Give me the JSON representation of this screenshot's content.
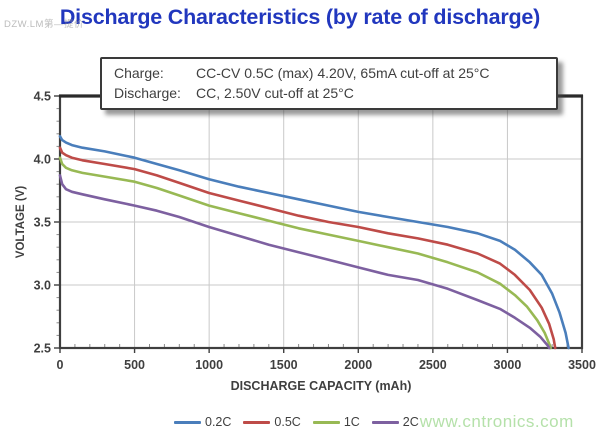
{
  "watermark_top": "DZW.LM第—提价",
  "title": "Discharge Characteristics (by rate of discharge)",
  "title_color": "#2137be",
  "note_box": {
    "rows": [
      {
        "label": "Charge:",
        "value": "CC-CV 0.5C (max) 4.20V, 65mA cut-off at 25°C"
      },
      {
        "label": "Discharge:",
        "value": "CC, 2.50V cut-off at 25°C"
      }
    ]
  },
  "watermark_site": "www.cntronics.com",
  "colors": {
    "frame": "#3f3f3f",
    "grid": "#c9c9c9",
    "tick": "#5a5a5a",
    "axis_text": "#3f3f3f"
  },
  "chart_data": {
    "type": "line",
    "title": "",
    "xlabel": "DISCHARGE CAPACITY (mAh)",
    "ylabel": "VOLTAGE (V)",
    "xlim": [
      0,
      3500
    ],
    "ylim": [
      2.5,
      4.5
    ],
    "x_ticks": [
      0,
      500,
      1000,
      1500,
      2000,
      2500,
      3000,
      3500
    ],
    "y_ticks": [
      2.5,
      3.0,
      3.5,
      4.0,
      4.5
    ],
    "y_tick_labels": [
      "2.5",
      "3.0",
      "3.5",
      "4.0",
      "4.5"
    ],
    "x_minor_step": 100,
    "y_minor_step": 0.1,
    "grid": true,
    "legend_position": "bottom",
    "series": [
      {
        "name": "0.2C",
        "color": "#4a7ebb",
        "points": [
          [
            0,
            4.18
          ],
          [
            15,
            4.15
          ],
          [
            40,
            4.13
          ],
          [
            80,
            4.11
          ],
          [
            150,
            4.09
          ],
          [
            300,
            4.06
          ],
          [
            500,
            4.01
          ],
          [
            650,
            3.96
          ],
          [
            800,
            3.91
          ],
          [
            1000,
            3.84
          ],
          [
            1200,
            3.78
          ],
          [
            1400,
            3.73
          ],
          [
            1600,
            3.68
          ],
          [
            1800,
            3.63
          ],
          [
            2000,
            3.58
          ],
          [
            2200,
            3.54
          ],
          [
            2400,
            3.5
          ],
          [
            2600,
            3.46
          ],
          [
            2800,
            3.41
          ],
          [
            2950,
            3.35
          ],
          [
            3050,
            3.28
          ],
          [
            3150,
            3.18
          ],
          [
            3230,
            3.08
          ],
          [
            3300,
            2.93
          ],
          [
            3350,
            2.78
          ],
          [
            3390,
            2.62
          ],
          [
            3410,
            2.5
          ]
        ]
      },
      {
        "name": "0.5C",
        "color": "#be4b48",
        "points": [
          [
            0,
            4.09
          ],
          [
            15,
            4.05
          ],
          [
            40,
            4.03
          ],
          [
            80,
            4.01
          ],
          [
            150,
            3.99
          ],
          [
            300,
            3.96
          ],
          [
            500,
            3.92
          ],
          [
            650,
            3.87
          ],
          [
            800,
            3.81
          ],
          [
            1000,
            3.73
          ],
          [
            1200,
            3.67
          ],
          [
            1400,
            3.61
          ],
          [
            1600,
            3.55
          ],
          [
            1800,
            3.5
          ],
          [
            2000,
            3.46
          ],
          [
            2200,
            3.41
          ],
          [
            2400,
            3.37
          ],
          [
            2600,
            3.32
          ],
          [
            2800,
            3.25
          ],
          [
            2950,
            3.17
          ],
          [
            3050,
            3.08
          ],
          [
            3150,
            2.96
          ],
          [
            3230,
            2.82
          ],
          [
            3280,
            2.69
          ],
          [
            3310,
            2.57
          ],
          [
            3320,
            2.5
          ]
        ]
      },
      {
        "name": "1C",
        "color": "#98b954",
        "points": [
          [
            0,
            4.01
          ],
          [
            15,
            3.96
          ],
          [
            40,
            3.93
          ],
          [
            80,
            3.91
          ],
          [
            150,
            3.89
          ],
          [
            300,
            3.86
          ],
          [
            500,
            3.82
          ],
          [
            650,
            3.77
          ],
          [
            800,
            3.71
          ],
          [
            1000,
            3.63
          ],
          [
            1200,
            3.57
          ],
          [
            1400,
            3.51
          ],
          [
            1600,
            3.45
          ],
          [
            1800,
            3.4
          ],
          [
            2000,
            3.35
          ],
          [
            2200,
            3.3
          ],
          [
            2400,
            3.25
          ],
          [
            2600,
            3.18
          ],
          [
            2800,
            3.1
          ],
          [
            2950,
            3.01
          ],
          [
            3050,
            2.92
          ],
          [
            3130,
            2.83
          ],
          [
            3200,
            2.72
          ],
          [
            3250,
            2.62
          ],
          [
            3285,
            2.52
          ],
          [
            3290,
            2.5
          ]
        ]
      },
      {
        "name": "2C",
        "color": "#7d60a0",
        "points": [
          [
            0,
            3.87
          ],
          [
            15,
            3.8
          ],
          [
            40,
            3.76
          ],
          [
            80,
            3.74
          ],
          [
            150,
            3.72
          ],
          [
            300,
            3.68
          ],
          [
            500,
            3.63
          ],
          [
            650,
            3.59
          ],
          [
            800,
            3.54
          ],
          [
            1000,
            3.46
          ],
          [
            1200,
            3.39
          ],
          [
            1400,
            3.32
          ],
          [
            1600,
            3.26
          ],
          [
            1800,
            3.2
          ],
          [
            2000,
            3.14
          ],
          [
            2200,
            3.08
          ],
          [
            2400,
            3.04
          ],
          [
            2600,
            2.97
          ],
          [
            2800,
            2.88
          ],
          [
            2950,
            2.81
          ],
          [
            3050,
            2.74
          ],
          [
            3150,
            2.66
          ],
          [
            3220,
            2.59
          ],
          [
            3270,
            2.52
          ],
          [
            3280,
            2.5
          ]
        ]
      }
    ]
  }
}
